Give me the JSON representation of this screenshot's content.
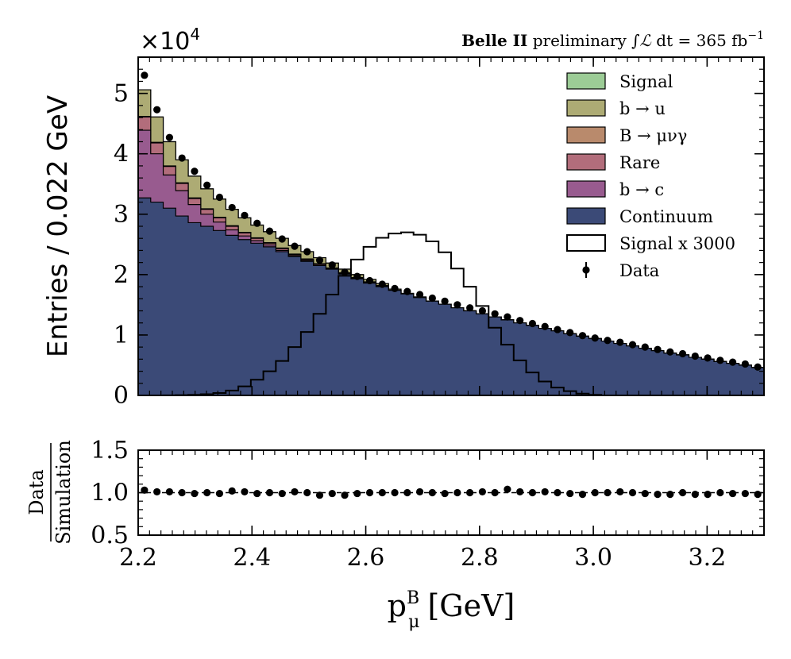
{
  "figure": {
    "experiment": "Belle II",
    "status": "preliminary",
    "lumi_integral_symbol": "∫",
    "lumi_symbol": "ℒ",
    "lumi_dt": "dt",
    "lumi_value": "= 365 fb",
    "lumi_exponent": "−1",
    "y_multiplier_base": "×10",
    "y_multiplier_exponent": "4"
  },
  "colors": {
    "continuum": "#3b4a77",
    "b_to_c": "#985b8f",
    "rare": "#b26d7b",
    "B_to_munugamma": "#b98a6c",
    "b_to_u": "#adab74",
    "signal": "#9ccc96",
    "data": "#000000"
  },
  "chart_data": [
    {
      "type": "bar",
      "subtype": "stacked-histogram",
      "ylabel": "Entries / 0.022 GeV",
      "xlim": [
        2.2,
        3.3
      ],
      "ylim": [
        0,
        5.6
      ],
      "y_unit_scale": 10000,
      "bin_width": 0.022,
      "x_ticks": [
        "2.2",
        "2.4",
        "2.6",
        "2.8",
        "3.0",
        "3.2"
      ],
      "y_ticks": [
        "0",
        "1",
        "2",
        "3",
        "4",
        "5"
      ],
      "legend_placement": "top-right",
      "legend": [
        "Signal",
        "b → u",
        "B → μνγ",
        "Rare",
        "b → c",
        "Continuum",
        "Signal x 3000",
        "Data"
      ],
      "series": [
        {
          "name": "Continuum",
          "key": "continuum",
          "values": [
            3.27,
            3.2,
            3.1,
            2.97,
            2.86,
            2.8,
            2.73,
            2.65,
            2.58,
            2.52,
            2.46,
            2.38,
            2.3,
            2.22,
            2.15,
            2.09,
            2.01,
            1.93,
            1.86,
            1.8,
            1.74,
            1.68,
            1.62,
            1.56,
            1.51,
            1.45,
            1.4,
            1.35,
            1.3,
            1.25,
            1.2,
            1.16,
            1.11,
            1.07,
            1.02,
            0.98,
            0.94,
            0.9,
            0.86,
            0.82,
            0.78,
            0.74,
            0.7,
            0.67,
            0.63,
            0.6,
            0.56,
            0.53,
            0.5,
            0.46
          ]
        },
        {
          "name": "b → c",
          "key": "b_to_c",
          "values": [
            1.12,
            0.8,
            0.55,
            0.42,
            0.3,
            0.2,
            0.14,
            0.09,
            0.06,
            0.04,
            0.03,
            0.02,
            0.01,
            0.01,
            0,
            0,
            0,
            0,
            0,
            0,
            0,
            0,
            0,
            0,
            0,
            0,
            0,
            0,
            0,
            0,
            0,
            0,
            0,
            0,
            0,
            0,
            0,
            0,
            0,
            0,
            0,
            0,
            0,
            0,
            0,
            0,
            0,
            0,
            0,
            0
          ]
        },
        {
          "name": "Rare",
          "key": "rare",
          "values": [
            0.22,
            0.18,
            0.14,
            0.12,
            0.1,
            0.08,
            0.07,
            0.06,
            0.05,
            0.04,
            0.03,
            0.03,
            0.02,
            0.02,
            0.02,
            0.01,
            0.01,
            0.01,
            0.01,
            0.01,
            0,
            0,
            0,
            0,
            0,
            0,
            0,
            0,
            0,
            0,
            0,
            0,
            0,
            0,
            0,
            0,
            0,
            0,
            0,
            0,
            0,
            0,
            0,
            0,
            0,
            0,
            0,
            0,
            0,
            0
          ]
        },
        {
          "name": "B → μνγ",
          "key": "B_to_munugamma",
          "values": [
            0.01,
            0.01,
            0.01,
            0.01,
            0.01,
            0.01,
            0.01,
            0.01,
            0.01,
            0.01,
            0.01,
            0.01,
            0.01,
            0.01,
            0.01,
            0.01,
            0.01,
            0.01,
            0.01,
            0.01,
            0,
            0,
            0,
            0,
            0,
            0,
            0,
            0,
            0,
            0,
            0,
            0,
            0,
            0,
            0,
            0,
            0,
            0,
            0,
            0,
            0,
            0,
            0,
            0,
            0,
            0,
            0,
            0,
            0,
            0
          ]
        },
        {
          "name": "b → u",
          "key": "b_to_u",
          "values": [
            0.44,
            0.42,
            0.4,
            0.38,
            0.36,
            0.33,
            0.3,
            0.27,
            0.24,
            0.21,
            0.18,
            0.16,
            0.14,
            0.12,
            0.1,
            0.08,
            0.06,
            0.05,
            0.04,
            0.03,
            0.02,
            0.01,
            0.01,
            0,
            0,
            0,
            0,
            0,
            0,
            0,
            0,
            0,
            0,
            0,
            0,
            0,
            0,
            0,
            0,
            0,
            0,
            0,
            0,
            0,
            0,
            0,
            0,
            0,
            0,
            0
          ]
        },
        {
          "name": "Signal",
          "key": "signal",
          "values": [
            0,
            0,
            0,
            0,
            0,
            0,
            0,
            0,
            0,
            0,
            0,
            0,
            0,
            0,
            0,
            0,
            0,
            0,
            0,
            0,
            0,
            0,
            0,
            0,
            0,
            0,
            0,
            0,
            0,
            0,
            0,
            0,
            0,
            0,
            0,
            0,
            0,
            0,
            0,
            0,
            0,
            0,
            0,
            0,
            0,
            0,
            0,
            0,
            0,
            0
          ]
        },
        {
          "name": "Signal x 3000",
          "key": "signal_x3000",
          "style": "step-outline",
          "values": [
            0,
            0,
            0.002,
            0.005,
            0.01,
            0.02,
            0.04,
            0.08,
            0.15,
            0.26,
            0.4,
            0.57,
            0.8,
            1.05,
            1.35,
            1.67,
            1.98,
            2.25,
            2.46,
            2.61,
            2.68,
            2.7,
            2.66,
            2.55,
            2.37,
            2.1,
            1.8,
            1.48,
            1.12,
            0.84,
            0.58,
            0.38,
            0.23,
            0.13,
            0.07,
            0.03,
            0.01,
            0,
            0,
            0,
            0,
            0,
            0,
            0,
            0,
            0,
            0,
            0,
            0,
            0
          ]
        }
      ],
      "data_points": {
        "name": "Data",
        "x": [
          2.211,
          2.233,
          2.255,
          2.277,
          2.299,
          2.321,
          2.343,
          2.365,
          2.387,
          2.409,
          2.431,
          2.453,
          2.475,
          2.497,
          2.519,
          2.541,
          2.563,
          2.585,
          2.607,
          2.629,
          2.651,
          2.673,
          2.695,
          2.717,
          2.739,
          2.761,
          2.783,
          2.805,
          2.827,
          2.849,
          2.871,
          2.893,
          2.915,
          2.937,
          2.959,
          2.981,
          3.003,
          3.025,
          3.047,
          3.069,
          3.091,
          3.113,
          3.135,
          3.157,
          3.179,
          3.201,
          3.223,
          3.245,
          3.267,
          3.289
        ],
        "y": [
          5.3,
          4.73,
          4.27,
          3.93,
          3.71,
          3.48,
          3.28,
          3.11,
          2.98,
          2.85,
          2.72,
          2.59,
          2.47,
          2.38,
          2.24,
          2.16,
          2.04,
          1.97,
          1.9,
          1.84,
          1.77,
          1.72,
          1.67,
          1.61,
          1.56,
          1.5,
          1.45,
          1.4,
          1.35,
          1.3,
          1.24,
          1.19,
          1.14,
          1.09,
          1.04,
          0.99,
          0.95,
          0.91,
          0.88,
          0.84,
          0.8,
          0.76,
          0.72,
          0.69,
          0.65,
          0.62,
          0.58,
          0.55,
          0.52,
          0.47
        ]
      }
    },
    {
      "type": "scatter",
      "subtype": "ratio",
      "ylabel_numerator": "Data",
      "ylabel_denominator": "Simulation",
      "xlabel_base": "p",
      "xlabel_sub": "μ",
      "xlabel_sup": "B",
      "xlabel_unit": "[GeV]",
      "xlim": [
        2.2,
        3.3
      ],
      "ylim": [
        0.5,
        1.5
      ],
      "y_ticks": [
        "0.5",
        "1.0",
        "1.5"
      ],
      "reference_line": 1.0,
      "x": [
        2.211,
        2.233,
        2.255,
        2.277,
        2.299,
        2.321,
        2.343,
        2.365,
        2.387,
        2.409,
        2.431,
        2.453,
        2.475,
        2.497,
        2.519,
        2.541,
        2.563,
        2.585,
        2.607,
        2.629,
        2.651,
        2.673,
        2.695,
        2.717,
        2.739,
        2.761,
        2.783,
        2.805,
        2.827,
        2.849,
        2.871,
        2.893,
        2.915,
        2.937,
        2.959,
        2.981,
        3.003,
        3.025,
        3.047,
        3.069,
        3.091,
        3.113,
        3.135,
        3.157,
        3.179,
        3.201,
        3.223,
        3.245,
        3.267,
        3.289
      ],
      "y": [
        1.03,
        1.01,
        1.01,
        1.0,
        0.99,
        1.0,
        0.99,
        1.02,
        1.01,
        0.99,
        1.0,
        0.99,
        1.01,
        1.0,
        0.97,
        0.99,
        0.97,
        0.99,
        1.0,
        1.0,
        1.0,
        1.0,
        1.01,
        1.0,
        0.99,
        1.0,
        1.0,
        1.01,
        1.0,
        1.04,
        1.01,
        1.0,
        1.01,
        1.0,
        0.99,
        0.98,
        1.0,
        1.0,
        1.01,
        1.0,
        0.99,
        0.98,
        0.98,
        1.0,
        0.98,
        0.98,
        1.0,
        0.99,
        0.99,
        0.98
      ]
    }
  ]
}
